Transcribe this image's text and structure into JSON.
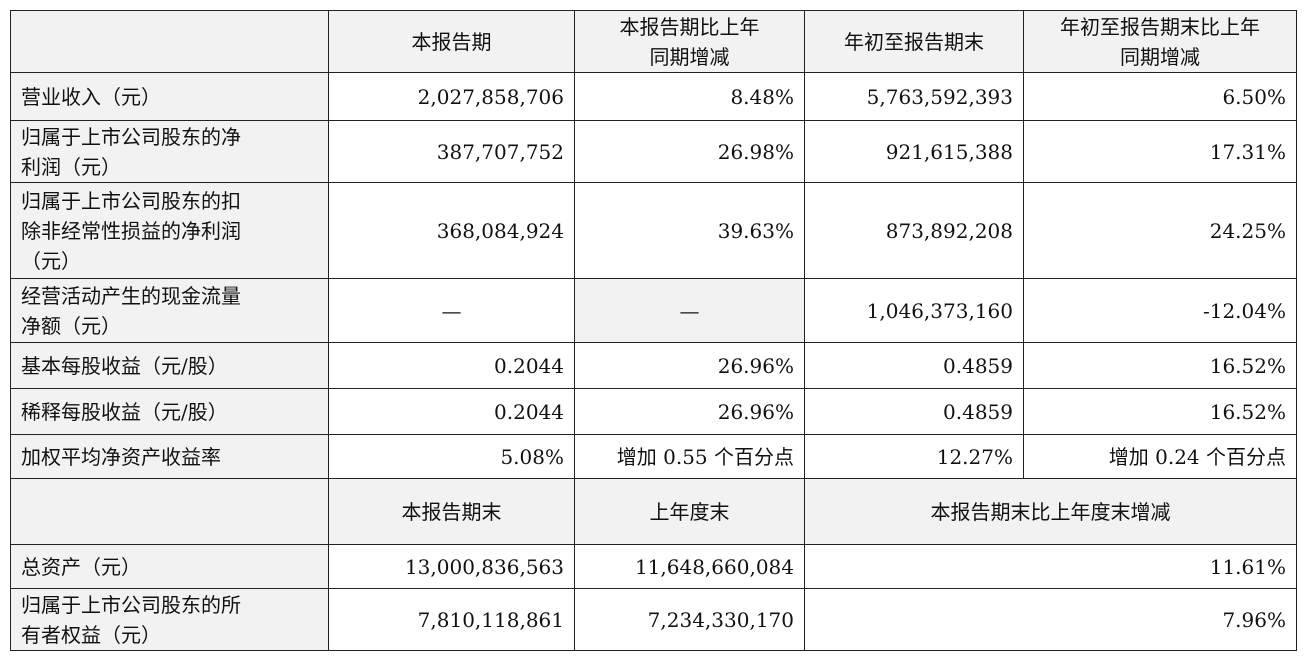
{
  "header": {
    "col1": "本报告期",
    "col2_line1": "本报告期比上年",
    "col2_line2": "同期增减",
    "col3": "年初至报告期末",
    "col4_line1": "年初至报告期末比上年",
    "col4_line2": "同期增减"
  },
  "rows": [
    {
      "label_lines": [
        "营业收入（元）"
      ],
      "v1": "2,027,858,706",
      "v2": "8.48%",
      "v3": "5,763,592,393",
      "v4": "6.50%"
    },
    {
      "label_lines": [
        "归属于上市公司股东的净",
        "利润（元）"
      ],
      "v1": "387,707,752",
      "v2": "26.98%",
      "v3": "921,615,388",
      "v4": "17.31%"
    },
    {
      "label_lines": [
        "归属于上市公司股东的扣",
        "除非经常性损益的净利润",
        "（元）"
      ],
      "v1": "368,084,924",
      "v2": "39.63%",
      "v3": "873,892,208",
      "v4": "24.25%"
    },
    {
      "label_lines": [
        "经营活动产生的现金流量",
        "净额（元）"
      ],
      "v1": "—",
      "v2": "—",
      "v3": "1,046,373,160",
      "v4": "-12.04%"
    },
    {
      "label_lines": [
        "基本每股收益（元/股）"
      ],
      "v1": "0.2044",
      "v2": "26.96%",
      "v3": "0.4859",
      "v4": "16.52%"
    },
    {
      "label_lines": [
        "稀释每股收益（元/股）"
      ],
      "v1": "0.2044",
      "v2": "26.96%",
      "v3": "0.4859",
      "v4": "16.52%"
    },
    {
      "label_lines": [
        "加权平均净资产收益率"
      ],
      "v1": "5.08%",
      "v2": "增加 0.55 个百分点",
      "v3": "12.27%",
      "v4": "增加 0.24 个百分点"
    }
  ],
  "header2": {
    "col1": "本报告期末",
    "col2": "上年度末",
    "col3": "本报告期末比上年度末增减"
  },
  "rows2": [
    {
      "label_lines": [
        "总资产（元）"
      ],
      "v1": "13,000,836,563",
      "v2": "11,648,660,084",
      "v3": "11.61%"
    },
    {
      "label_lines": [
        "归属于上市公司股东的所",
        "有者权益（元）"
      ],
      "v1": "7,810,118,861",
      "v2": "7,234,330,170",
      "v3": "7.96%"
    }
  ],
  "colors": {
    "header_bg": "#f2f2f2",
    "border": "#222222"
  }
}
